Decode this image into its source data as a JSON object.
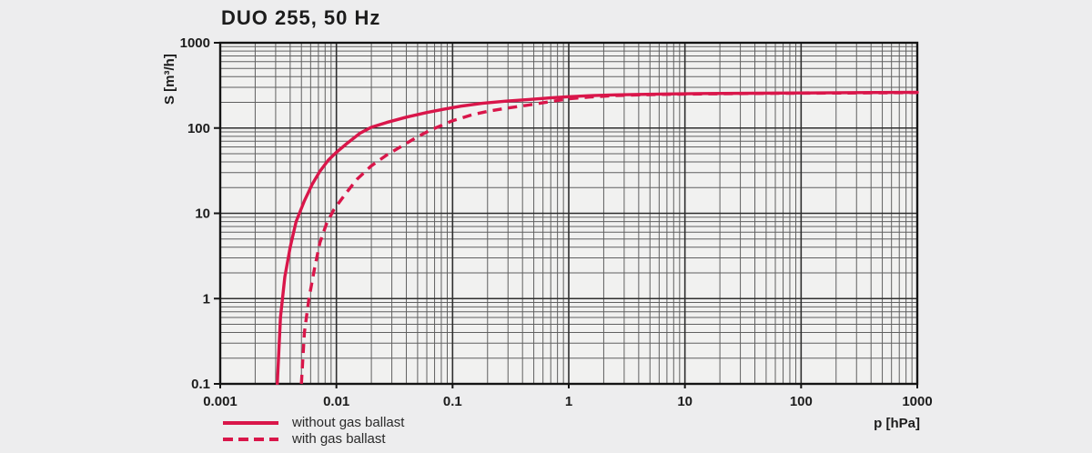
{
  "page": {
    "background": "#ededee"
  },
  "chart_data": {
    "type": "line",
    "title": "DUO 255, 50 Hz",
    "xlabel": "p [hPa]",
    "ylabel": "S [m³/h]",
    "x_scale": "log",
    "y_scale": "log",
    "xlim": [
      0.001,
      1000
    ],
    "ylim": [
      0.1,
      1000
    ],
    "x_ticks": [
      0.001,
      0.01,
      0.1,
      1,
      10,
      100,
      1000
    ],
    "x_tick_labels": [
      "0.001",
      "0.01",
      "0.1",
      "1",
      "10",
      "100",
      "1000"
    ],
    "y_ticks": [
      0.1,
      1,
      10,
      100,
      1000
    ],
    "y_tick_labels": [
      "0.1",
      "1",
      "10",
      "100",
      "1000"
    ],
    "grid": "log-log major and minor gridlines on",
    "legend_position": "below plot, bottom-left",
    "colors": {
      "curve": "#d9164a",
      "grid_minor": "#606060",
      "grid_major": "#2e2e2e",
      "axis": "#141414",
      "text": "#1c1c1c",
      "plot_bg": "#f1f1f0",
      "page_bg": "#ededee"
    },
    "series": [
      {
        "name": "without gas ballast",
        "style": "solid",
        "points": [
          [
            0.0031,
            0.1
          ],
          [
            0.0033,
            0.6
          ],
          [
            0.0036,
            1.8
          ],
          [
            0.004,
            4
          ],
          [
            0.0045,
            8
          ],
          [
            0.0053,
            14
          ],
          [
            0.0062,
            22
          ],
          [
            0.0072,
            31
          ],
          [
            0.0085,
            42
          ],
          [
            0.01,
            52
          ],
          [
            0.0125,
            67
          ],
          [
            0.016,
            87
          ],
          [
            0.02,
            102
          ],
          [
            0.027,
            116
          ],
          [
            0.04,
            134
          ],
          [
            0.06,
            152
          ],
          [
            0.085,
            167
          ],
          [
            0.12,
            181
          ],
          [
            0.18,
            195
          ],
          [
            0.28,
            206
          ],
          [
            0.45,
            216
          ],
          [
            0.7,
            226
          ],
          [
            1,
            233
          ],
          [
            1.6,
            240
          ],
          [
            2.5,
            245
          ],
          [
            4,
            248
          ],
          [
            7,
            251
          ],
          [
            15,
            254
          ],
          [
            40,
            256
          ],
          [
            100,
            258
          ],
          [
            300,
            260
          ],
          [
            1000,
            262
          ]
        ]
      },
      {
        "name": "with gas ballast",
        "style": "dashed",
        "points": [
          [
            0.005,
            0.1
          ],
          [
            0.0053,
            0.4
          ],
          [
            0.0058,
            1
          ],
          [
            0.0065,
            2.3
          ],
          [
            0.0072,
            4.5
          ],
          [
            0.0082,
            7.5
          ],
          [
            0.0095,
            11
          ],
          [
            0.012,
            17
          ],
          [
            0.015,
            25
          ],
          [
            0.02,
            36
          ],
          [
            0.027,
            48
          ],
          [
            0.037,
            62
          ],
          [
            0.05,
            79
          ],
          [
            0.065,
            95
          ],
          [
            0.08,
            107
          ],
          [
            0.1,
            122
          ],
          [
            0.15,
            144
          ],
          [
            0.2,
            157
          ],
          [
            0.3,
            172
          ],
          [
            0.45,
            186
          ],
          [
            0.65,
            201
          ],
          [
            1,
            220
          ],
          [
            1.5,
            231
          ],
          [
            2.5,
            240
          ],
          [
            4,
            245
          ],
          [
            8,
            249
          ],
          [
            20,
            252
          ],
          [
            60,
            255
          ],
          [
            200,
            257
          ],
          [
            600,
            259
          ],
          [
            1000,
            260
          ]
        ]
      }
    ]
  }
}
